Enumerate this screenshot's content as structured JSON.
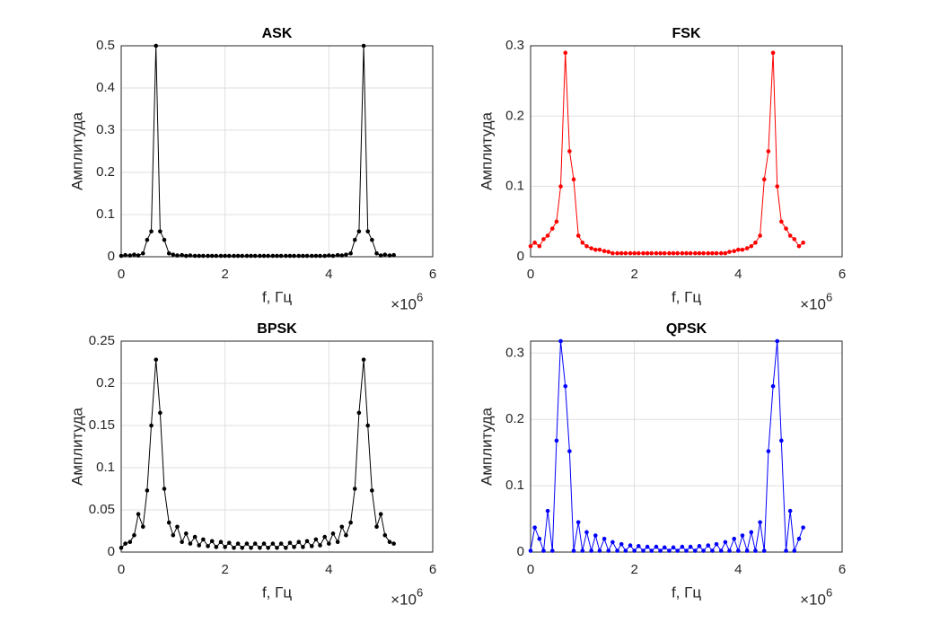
{
  "chart_data": [
    {
      "type": "line",
      "title": "ASK",
      "xlabel": "f, Гц",
      "ylabel": "Амплитуда",
      "x_multiplier": "×10",
      "x_exponent": "6",
      "color": "#000000",
      "xlim": [
        0,
        6
      ],
      "xticks": [
        0,
        2,
        4,
        6
      ],
      "ylim": [
        0,
        0.5
      ],
      "yticks": [
        0,
        0.1,
        0.2,
        0.3,
        0.4,
        0.5
      ],
      "grid": true,
      "x": [
        0,
        0.08,
        0.17,
        0.25,
        0.33,
        0.42,
        0.5,
        0.58,
        0.67,
        0.75,
        0.83,
        0.92,
        1,
        1.08,
        1.17,
        1.25,
        1.33,
        1.42,
        1.5,
        1.58,
        1.67,
        1.75,
        1.83,
        1.92,
        2,
        2.08,
        2.17,
        2.25,
        2.33,
        2.42,
        2.5,
        2.58,
        2.67,
        2.75,
        2.83,
        2.92,
        3,
        3.08,
        3.17,
        3.25,
        3.33,
        3.42,
        3.5,
        3.58,
        3.67,
        3.75,
        3.83,
        3.92,
        4,
        4.08,
        4.17,
        4.25,
        4.33,
        4.42,
        4.5,
        4.58,
        4.67,
        4.75,
        4.83,
        4.92,
        5,
        5.08,
        5.17,
        5.25
      ],
      "values": [
        0.002,
        0.004,
        0.003,
        0.005,
        0.003,
        0.008,
        0.04,
        0.06,
        0.5,
        0.06,
        0.04,
        0.008,
        0.005,
        0.003,
        0.004,
        0.002,
        0.003,
        0.002,
        0.002,
        0.002,
        0.002,
        0.002,
        0.002,
        0.002,
        0.002,
        0.002,
        0.002,
        0.002,
        0.002,
        0.002,
        0.002,
        0.002,
        0.002,
        0.002,
        0.002,
        0.002,
        0.002,
        0.002,
        0.002,
        0.002,
        0.002,
        0.002,
        0.002,
        0.002,
        0.002,
        0.002,
        0.002,
        0.002,
        0.003,
        0.002,
        0.004,
        0.003,
        0.005,
        0.008,
        0.04,
        0.06,
        0.5,
        0.06,
        0.04,
        0.008,
        0.003,
        0.005,
        0.003,
        0.004
      ]
    },
    {
      "type": "line",
      "title": "FSK",
      "xlabel": "f, Гц",
      "ylabel": "Амплитуда",
      "x_multiplier": "×10",
      "x_exponent": "6",
      "color": "#ff0000",
      "xlim": [
        0,
        6
      ],
      "xticks": [
        0,
        2,
        4,
        6
      ],
      "ylim": [
        0,
        0.3
      ],
      "yticks": [
        0,
        0.1,
        0.2,
        0.3
      ],
      "grid": true,
      "x": [
        0,
        0.08,
        0.17,
        0.25,
        0.33,
        0.42,
        0.5,
        0.58,
        0.67,
        0.75,
        0.83,
        0.92,
        1,
        1.08,
        1.17,
        1.25,
        1.33,
        1.42,
        1.5,
        1.58,
        1.67,
        1.75,
        1.83,
        1.92,
        2,
        2.08,
        2.17,
        2.25,
        2.33,
        2.42,
        2.5,
        2.58,
        2.67,
        2.75,
        2.83,
        2.92,
        3,
        3.08,
        3.17,
        3.25,
        3.33,
        3.42,
        3.5,
        3.58,
        3.67,
        3.75,
        3.83,
        3.92,
        4,
        4.08,
        4.17,
        4.25,
        4.33,
        4.42,
        4.5,
        4.58,
        4.67,
        4.75,
        4.83,
        4.92,
        5,
        5.08,
        5.17,
        5.25
      ],
      "values": [
        0.015,
        0.02,
        0.015,
        0.025,
        0.03,
        0.04,
        0.05,
        0.1,
        0.29,
        0.15,
        0.11,
        0.03,
        0.02,
        0.015,
        0.012,
        0.01,
        0.01,
        0.008,
        0.007,
        0.005,
        0.005,
        0.005,
        0.005,
        0.005,
        0.005,
        0.005,
        0.005,
        0.005,
        0.005,
        0.005,
        0.005,
        0.005,
        0.005,
        0.005,
        0.005,
        0.005,
        0.005,
        0.005,
        0.005,
        0.005,
        0.005,
        0.005,
        0.005,
        0.005,
        0.005,
        0.005,
        0.007,
        0.008,
        0.01,
        0.01,
        0.012,
        0.015,
        0.02,
        0.03,
        0.11,
        0.15,
        0.29,
        0.1,
        0.05,
        0.04,
        0.03,
        0.025,
        0.015,
        0.02
      ]
    },
    {
      "type": "line",
      "title": "BPSK",
      "xlabel": "f, Гц",
      "ylabel": "Амплитуда",
      "x_multiplier": "×10",
      "x_exponent": "6",
      "color": "#000000",
      "xlim": [
        0,
        6
      ],
      "xticks": [
        0,
        2,
        4,
        6
      ],
      "ylim": [
        0,
        0.25
      ],
      "yticks": [
        0,
        0.05,
        0.1,
        0.15,
        0.2,
        0.25
      ],
      "grid": true,
      "x": [
        0,
        0.08,
        0.17,
        0.25,
        0.33,
        0.42,
        0.5,
        0.58,
        0.67,
        0.75,
        0.83,
        0.92,
        1,
        1.08,
        1.17,
        1.25,
        1.33,
        1.42,
        1.5,
        1.58,
        1.67,
        1.75,
        1.83,
        1.92,
        2,
        2.08,
        2.17,
        2.25,
        2.33,
        2.42,
        2.5,
        2.58,
        2.67,
        2.75,
        2.83,
        2.92,
        3,
        3.08,
        3.17,
        3.25,
        3.33,
        3.42,
        3.5,
        3.58,
        3.67,
        3.75,
        3.83,
        3.92,
        4,
        4.08,
        4.17,
        4.25,
        4.33,
        4.42,
        4.5,
        4.58,
        4.67,
        4.75,
        4.83,
        4.92,
        5,
        5.08,
        5.17,
        5.25
      ],
      "values": [
        0.005,
        0.01,
        0.012,
        0.02,
        0.045,
        0.03,
        0.073,
        0.15,
        0.228,
        0.165,
        0.075,
        0.035,
        0.02,
        0.03,
        0.012,
        0.022,
        0.01,
        0.018,
        0.008,
        0.015,
        0.007,
        0.013,
        0.006,
        0.012,
        0.006,
        0.011,
        0.005,
        0.01,
        0.005,
        0.01,
        0.005,
        0.01,
        0.005,
        0.01,
        0.005,
        0.01,
        0.005,
        0.01,
        0.005,
        0.011,
        0.006,
        0.012,
        0.006,
        0.013,
        0.007,
        0.015,
        0.008,
        0.018,
        0.01,
        0.022,
        0.012,
        0.03,
        0.02,
        0.035,
        0.075,
        0.165,
        0.228,
        0.15,
        0.073,
        0.03,
        0.045,
        0.02,
        0.012,
        0.01
      ]
    },
    {
      "type": "line",
      "title": "QPSK",
      "xlabel": "f, Гц",
      "ylabel": "Амплитуда",
      "x_multiplier": "×10",
      "x_exponent": "6",
      "color": "#0000ff",
      "xlim": [
        0,
        6
      ],
      "xticks": [
        0,
        2,
        4,
        6
      ],
      "ylim": [
        0,
        0.318
      ],
      "yticks": [
        0,
        0.1,
        0.2,
        0.3
      ],
      "grid": true,
      "x": [
        0,
        0.08,
        0.17,
        0.25,
        0.33,
        0.42,
        0.5,
        0.58,
        0.67,
        0.75,
        0.83,
        0.92,
        1,
        1.08,
        1.17,
        1.25,
        1.33,
        1.42,
        1.5,
        1.58,
        1.67,
        1.75,
        1.83,
        1.92,
        2,
        2.08,
        2.17,
        2.25,
        2.33,
        2.42,
        2.5,
        2.58,
        2.67,
        2.75,
        2.83,
        2.92,
        3,
        3.08,
        3.17,
        3.25,
        3.33,
        3.42,
        3.5,
        3.58,
        3.67,
        3.75,
        3.83,
        3.92,
        4,
        4.08,
        4.17,
        4.25,
        4.33,
        4.42,
        4.5,
        4.58,
        4.67,
        4.75,
        4.83,
        4.92,
        5,
        5.08,
        5.17,
        5.25
      ],
      "values": [
        0.002,
        0.037,
        0.02,
        0.002,
        0.062,
        0.002,
        0.168,
        0.318,
        0.25,
        0.152,
        0.002,
        0.045,
        0.002,
        0.03,
        0.002,
        0.025,
        0.002,
        0.02,
        0.002,
        0.015,
        0.002,
        0.012,
        0.002,
        0.01,
        0.002,
        0.009,
        0.002,
        0.008,
        0.002,
        0.008,
        0.002,
        0.007,
        0.002,
        0.007,
        0.002,
        0.008,
        0.002,
        0.008,
        0.002,
        0.009,
        0.002,
        0.01,
        0.002,
        0.012,
        0.002,
        0.015,
        0.002,
        0.02,
        0.002,
        0.025,
        0.002,
        0.03,
        0.002,
        0.045,
        0.002,
        0.152,
        0.25,
        0.318,
        0.168,
        0.002,
        0.062,
        0.002,
        0.02,
        0.037
      ]
    }
  ]
}
